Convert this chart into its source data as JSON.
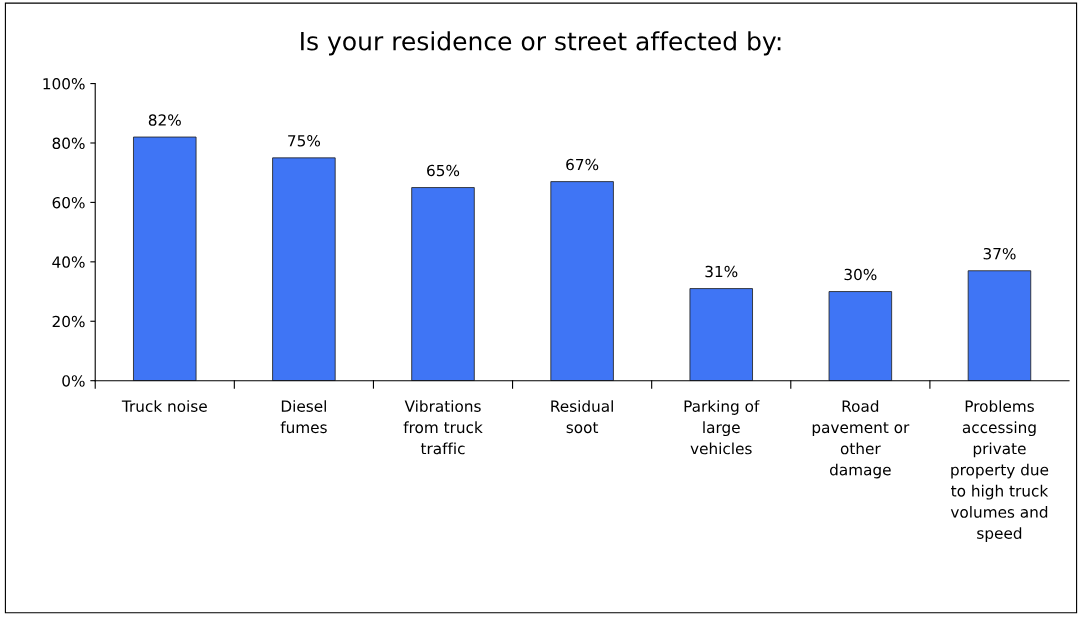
{
  "chart_data": {
    "type": "bar",
    "title": "Is your residence or street affected by:",
    "categories": [
      "Truck noise",
      "Diesel\nfumes",
      "Vibrations\nfrom truck\ntraffic",
      "Residual\nsoot",
      "Parking of\nlarge\nvehicles",
      "Road\npavement or\nother\ndamage",
      "Problems\naccessing\nprivate\nproperty due\nto high truck\nvolumes and\nspeed"
    ],
    "values": [
      82,
      75,
      65,
      67,
      31,
      30,
      37
    ],
    "value_labels": [
      "82%",
      "75%",
      "65%",
      "67%",
      "31%",
      "30%",
      "37%"
    ],
    "color": "#3f75f5",
    "ylim": [
      0,
      100
    ],
    "yticks": [
      {
        "value": 0,
        "label": "0%"
      },
      {
        "value": 20,
        "label": "20%"
      },
      {
        "value": 40,
        "label": "40%"
      },
      {
        "value": 60,
        "label": "60%"
      },
      {
        "value": 80,
        "label": "80%"
      },
      {
        "value": 100,
        "label": "100%"
      }
    ],
    "grid": false,
    "legend": false
  }
}
